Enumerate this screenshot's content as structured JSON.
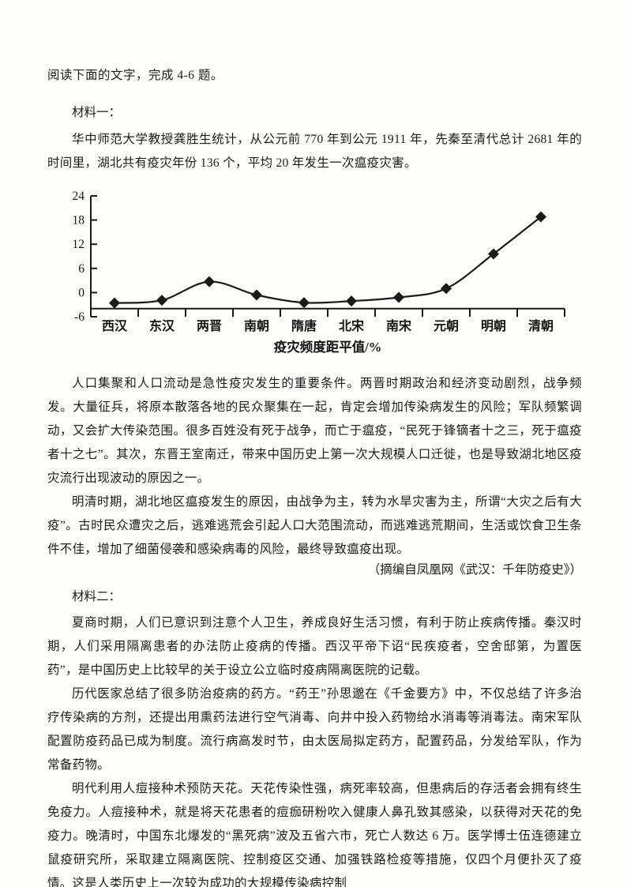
{
  "header": {
    "instruction": "阅读下面的文字，完成 4-6 题。"
  },
  "material_one": {
    "label": "材料一：",
    "paragraphs": [
      "华中师范大学教授龚胜生统计，从公元前 770 年到公元 1911 年，先秦至清代总计 2681 年的时间里，湖北共有疫灾年份 136 个，平均 20 年发生一次瘟疫灾害。",
      "人口集聚和人口流动是急性疫灾发生的重要条件。两晋时期政治和经济变动剧烈，战争频发。大量征兵，将原本散落各地的民众聚集在一起，肯定会增加传染病发生的风险；军队频繁调动，又会扩大传染范围。很多百姓没有死于战争，而亡于瘟疫，“民死于锋镝者十之三，死于瘟疫者十之七”。其次，东晋王室南迁，带来中国历史上第一次大规模人口迁徙，也是导致湖北地区疫灾流行出现波动的原因之一。",
      "明清时期，湖北地区瘟疫发生的原因，由战争为主，转为水旱灾害为主，所谓“大灾之后有大疫”。古时民众遭灾之后，逃难逃荒会引起人口大范围流动，而逃难逃荒期间，生活或饮食卫生条件不佳，增加了细菌侵袭和感染病毒的风险，最终导致瘟疫出现。"
    ],
    "attribution": "（摘编自凤凰网《武汉：千年防疫史》）"
  },
  "material_two": {
    "label": "材料二：",
    "paragraphs": [
      "夏商时期，人们已意识到注意个人卫生，养成良好生活习惯，有利于防止疾病传播。秦汉时期，人们采用隔离患者的办法防止疫病的传播。西汉平帝下诏“民疾疫者，空舍邸第，为置医药”，是中国历史上比较早的关于设立公立临时疫病隔离医院的记载。",
      "历代医家总结了很多防治疫病的药方。“药王”孙思邈在《千金要方》中，不仅总结了许多治疗传染病的方剂，还提出用熏药法进行空气消毒、向井中投入药物给水消毒等消毒法。南宋军队配置防疫药品已成为制度。流行病高发时节，由太医局拟定药方，配置药品，分发给军队，作为常备药物。",
      "明代利用人痘接种术预防天花。天花传染性强，病死率较高，但患病后的存活者会拥有终生免疫力。人痘接种术，就是将天花患者的痘痂研粉吹入健康人鼻孔致其感染，以获得对天花的免疫力。晚清时，中国东北爆发的“黑死病”波及五省六市，死亡人数达 6 万。医学博士伍连德建立鼠疫研究所，采取建立隔离医院、控制疫区交通、加强铁路检疫等措施，仅四个月便扑灭了疫情。这是人类历史上一次较为成功的大规模传染病控制"
    ]
  },
  "chart_data": {
    "type": "line",
    "title": "疫灾频度距平值/%",
    "categories": [
      "西汉",
      "东汉",
      "两晋",
      "南朝",
      "隋唐",
      "北宋",
      "南宋",
      "元朝",
      "明朝",
      "清朝"
    ],
    "values": [
      -2.6,
      -1.9,
      2.7,
      -0.6,
      -2.5,
      -2.1,
      -1.2,
      1.0,
      9.6,
      18.8
    ],
    "yticks": [
      24,
      18,
      12,
      6,
      0,
      -6
    ],
    "ylim": [
      -6,
      24
    ],
    "x_axis_at": -4,
    "marker": "diamond",
    "smooth": true,
    "grid": false,
    "legend": "none",
    "line_color": "#1a1a1a"
  }
}
